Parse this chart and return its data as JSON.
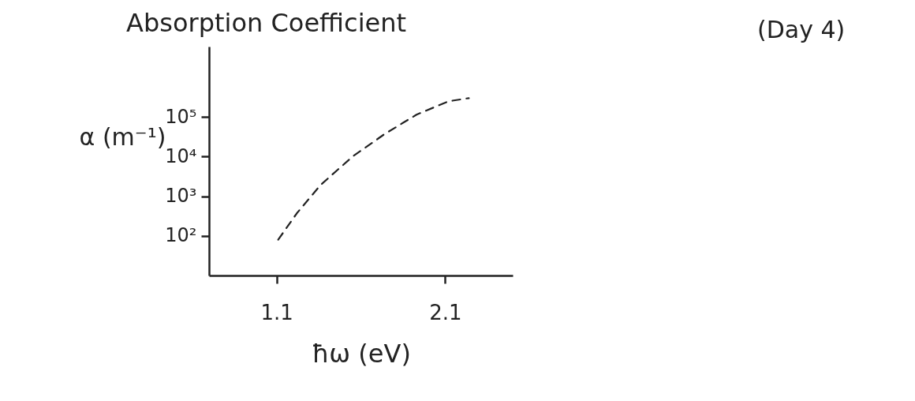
{
  "chart_data": {
    "type": "line",
    "title": "Absorption Coefficient",
    "annotations": [
      "(Day 4)"
    ],
    "xlabel": "ħω (eV)",
    "ylabel": "α (m⁻¹)",
    "log": "y",
    "x": [
      1.11,
      1.22,
      1.36,
      1.55,
      1.74,
      1.93,
      2.12,
      2.24
    ],
    "series": [
      {
        "color": "#222222",
        "values": [
          80,
          370,
          1900,
          10000,
          37000,
          115000,
          250000,
          300000
        ]
      }
    ],
    "xlim": [
      0.7,
      2.5
    ],
    "xticks": [
      1.1,
      2.1
    ],
    "ylim": [
      10,
      6000000
    ],
    "yticks": [
      {
        "value": 100,
        "label": "10²"
      },
      {
        "value": 1000,
        "label": "10³"
      },
      {
        "value": 10000,
        "label": "10⁴"
      },
      {
        "value": 100000,
        "label": "10⁵"
      }
    ],
    "grid": false,
    "marker": "none",
    "line_style": "dashed"
  }
}
